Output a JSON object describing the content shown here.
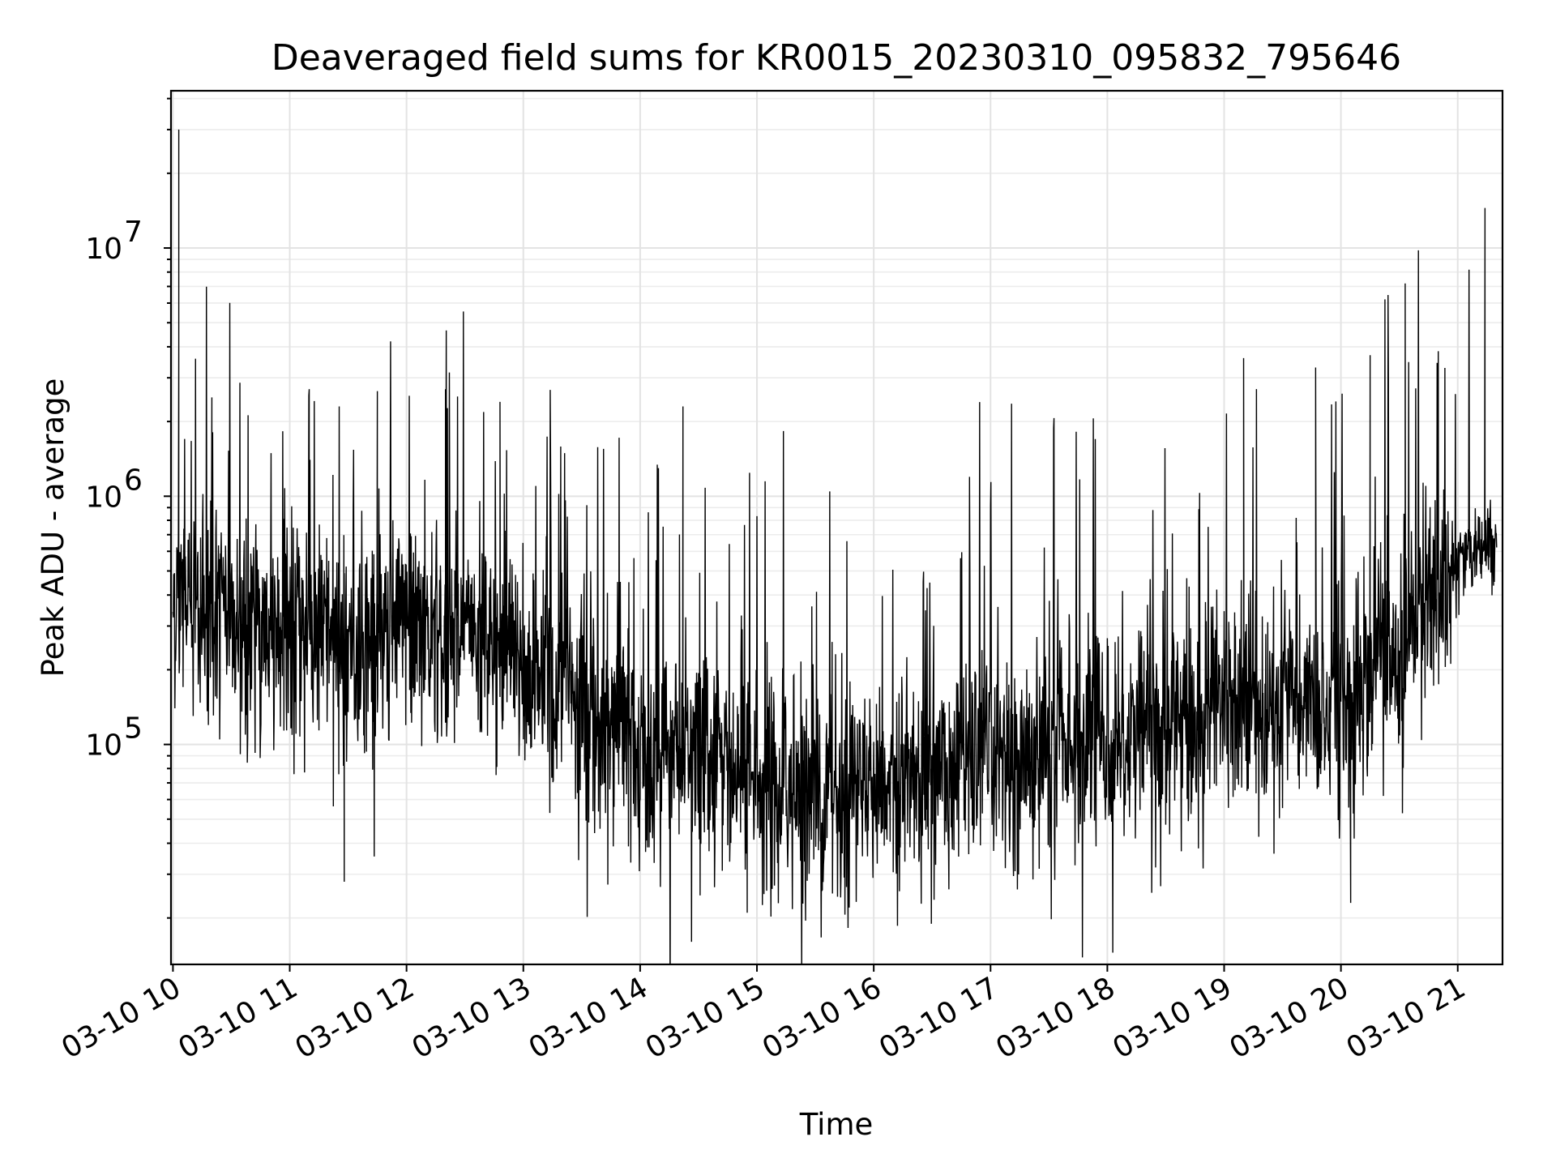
{
  "chart_data": {
    "type": "line",
    "title": "Deaveraged field sums for KR0015_20230310_095832_795646",
    "xlabel": "Time",
    "ylabel": "Peak ADU - average",
    "yscale": "log",
    "grid": true,
    "x_range": [
      "03-10 09:59",
      "03-10 21:23"
    ],
    "y_range": [
      13000,
      43000000
    ],
    "x_tick_labels": [
      "03-10 10",
      "03-10 11",
      "03-10 12",
      "03-10 13",
      "03-10 14",
      "03-10 15",
      "03-10 16",
      "03-10 17",
      "03-10 18",
      "03-10 19",
      "03-10 20",
      "03-10 21"
    ],
    "y_ticks": [
      {
        "base": "10",
        "exp": "5",
        "value": 100000
      },
      {
        "base": "10",
        "exp": "6",
        "value": 1000000
      },
      {
        "base": "10",
        "exp": "7",
        "value": 10000000
      }
    ],
    "series": [
      {
        "color": "#000000",
        "x": [
          "03-10 10:00",
          "03-10 10:30",
          "03-10 11:00",
          "03-10 11:30",
          "03-10 12:00",
          "03-10 12:30",
          "03-10 13:00",
          "03-10 13:30",
          "03-10 14:00",
          "03-10 14:30",
          "03-10 15:00",
          "03-10 15:30",
          "03-10 16:00",
          "03-10 16:30",
          "03-10 17:00",
          "03-10 17:30",
          "03-10 18:00",
          "03-10 18:30",
          "03-10 19:00",
          "03-10 19:30",
          "03-10 20:00",
          "03-10 20:30",
          "03-10 21:00",
          "03-10 21:20"
        ],
        "y_typical": [
          400000,
          320000,
          280000,
          250000,
          300000,
          260000,
          200000,
          140000,
          100000,
          85000,
          70000,
          62000,
          70000,
          78000,
          85000,
          95000,
          110000,
          120000,
          140000,
          150000,
          160000,
          220000,
          550000,
          650000
        ],
        "spikes": [
          {
            "x": "03-10 10:03",
            "y": 30000000
          },
          {
            "x": "03-10 10:03",
            "y": 4200000
          },
          {
            "x": "03-10 10:20",
            "y": 2500000
          },
          {
            "x": "03-10 11:10",
            "y": 2700000
          },
          {
            "x": "03-10 11:45",
            "y": 2650000
          },
          {
            "x": "03-10 12:20",
            "y": 2700000
          },
          {
            "x": "03-10 12:48",
            "y": 2400000
          },
          {
            "x": "03-10 14:22",
            "y": 2300000
          },
          {
            "x": "03-10 19:10",
            "y": 3600000
          },
          {
            "x": "03-10 19:47",
            "y": 3300000
          },
          {
            "x": "03-10 20:15",
            "y": 3700000
          },
          {
            "x": "03-10 20:33",
            "y": 7200000
          },
          {
            "x": "03-10 21:14",
            "y": 14500000
          }
        ],
        "dips": [
          {
            "x": "03-10 11:28",
            "y": 28000
          },
          {
            "x": "03-10 14:55",
            "y": 21000
          },
          {
            "x": "03-10 15:25",
            "y": 19500
          },
          {
            "x": "03-10 20:05",
            "y": 23000
          }
        ]
      }
    ]
  }
}
